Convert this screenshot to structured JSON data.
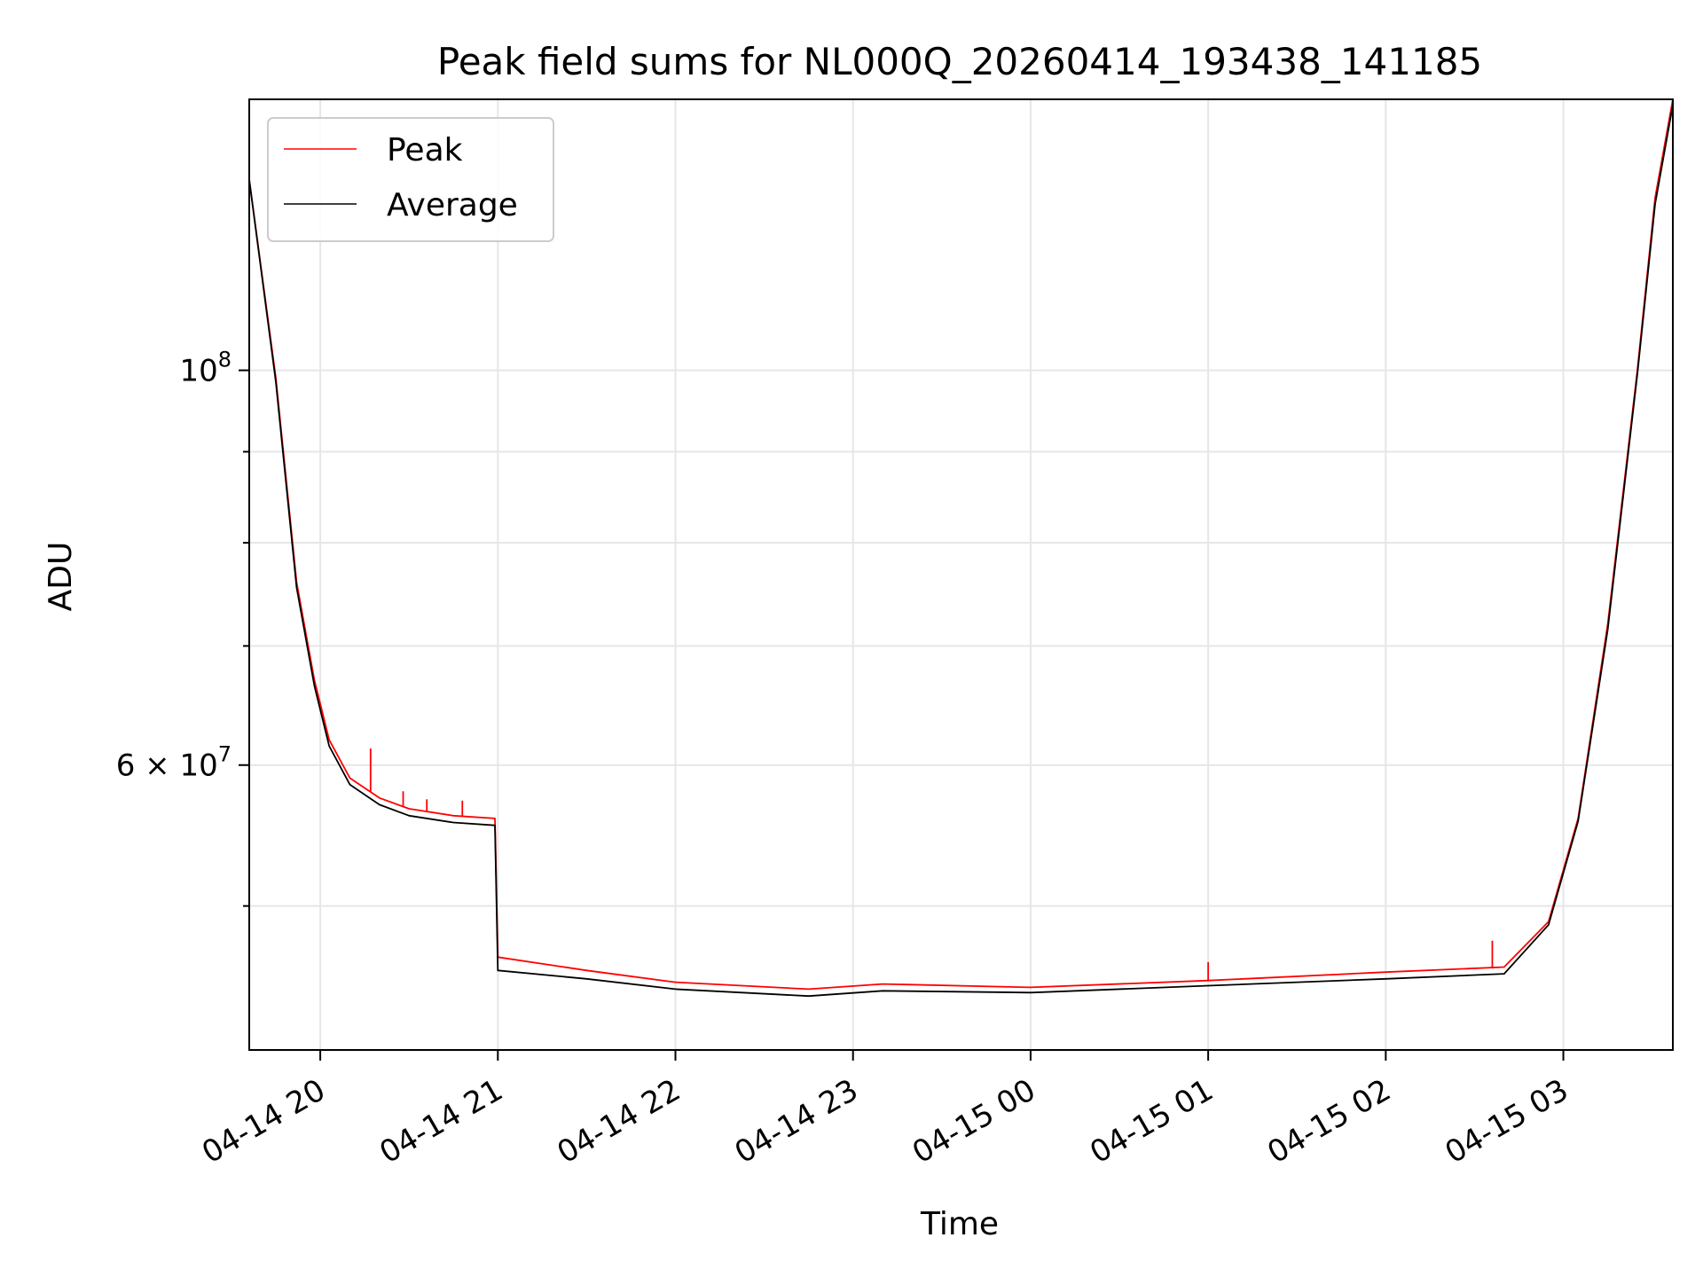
{
  "chart_data": {
    "type": "line",
    "title": "Peak field sums for NL000Q_20260414_193438_141185",
    "xlabel": "Time",
    "ylabel": "ADU",
    "yscale": "log",
    "xlim": [
      "2026-04-14 19:36",
      "2026-04-15 03:37"
    ],
    "ylim": [
      41500000,
      142000000
    ],
    "grid": true,
    "legend_position": "top-left",
    "x_ticks": [
      {
        "value": "2026-04-14 20:00",
        "label": "04-14 20"
      },
      {
        "value": "2026-04-14 21:00",
        "label": "04-14 21"
      },
      {
        "value": "2026-04-14 22:00",
        "label": "04-14 22"
      },
      {
        "value": "2026-04-14 23:00",
        "label": "04-14 23"
      },
      {
        "value": "2026-04-15 00:00",
        "label": "04-15 00"
      },
      {
        "value": "2026-04-15 01:00",
        "label": "04-15 01"
      },
      {
        "value": "2026-04-15 02:00",
        "label": "04-15 02"
      },
      {
        "value": "2026-04-15 03:00",
        "label": "04-15 03"
      }
    ],
    "y_major_ticks": [
      {
        "value": 100000000,
        "base": "10",
        "exp": "8",
        "mantissa": ""
      },
      {
        "value": 60000000,
        "base": "10",
        "exp": "7",
        "mantissa": "6"
      }
    ],
    "y_minor_ticks": [
      50000000,
      70000000,
      80000000,
      90000000
    ],
    "series": [
      {
        "name": "Peak",
        "color": "#ff0000",
        "points": [
          [
            "2026-04-14 19:36",
            128000000
          ],
          [
            "2026-04-14 19:45",
            99000000
          ],
          [
            "2026-04-14 19:52",
            76000000
          ],
          [
            "2026-04-14 19:58",
            67000000
          ],
          [
            "2026-04-14 20:03",
            62000000
          ],
          [
            "2026-04-14 20:10",
            59000000
          ],
          [
            "2026-04-14 20:20",
            57500000
          ],
          [
            "2026-04-14 20:30",
            56700000
          ],
          [
            "2026-04-14 20:45",
            56200000
          ],
          [
            "2026-04-14 20:59",
            56000000
          ],
          [
            "2026-04-14 21:00",
            46800000
          ],
          [
            "2026-04-14 21:30",
            46000000
          ],
          [
            "2026-04-14 22:00",
            45300000
          ],
          [
            "2026-04-14 22:45",
            44900000
          ],
          [
            "2026-04-14 23:10",
            45200000
          ],
          [
            "2026-04-15 00:00",
            45000000
          ],
          [
            "2026-04-15 01:00",
            45400000
          ],
          [
            "2026-04-15 02:00",
            45900000
          ],
          [
            "2026-04-15 02:40",
            46200000
          ],
          [
            "2026-04-15 02:55",
            49000000
          ],
          [
            "2026-04-15 03:05",
            56000000
          ],
          [
            "2026-04-15 03:15",
            72000000
          ],
          [
            "2026-04-15 03:25",
            100000000
          ],
          [
            "2026-04-15 03:31",
            125000000
          ],
          [
            "2026-04-15 03:37",
            142000000
          ]
        ],
        "spikes": [
          [
            "2026-04-14 20:17",
            61300000
          ],
          [
            "2026-04-14 20:28",
            58000000
          ],
          [
            "2026-04-14 20:36",
            57400000
          ],
          [
            "2026-04-14 20:48",
            57300000
          ],
          [
            "2026-04-15 01:00",
            46500000
          ],
          [
            "2026-04-15 02:36",
            47800000
          ]
        ]
      },
      {
        "name": "Average",
        "color": "#000000",
        "points": [
          [
            "2026-04-14 19:36",
            128000000
          ],
          [
            "2026-04-14 19:45",
            98500000
          ],
          [
            "2026-04-14 19:52",
            75500000
          ],
          [
            "2026-04-14 19:58",
            66500000
          ],
          [
            "2026-04-14 20:03",
            61500000
          ],
          [
            "2026-04-14 20:10",
            58500000
          ],
          [
            "2026-04-14 20:20",
            57000000
          ],
          [
            "2026-04-14 20:30",
            56200000
          ],
          [
            "2026-04-14 20:45",
            55700000
          ],
          [
            "2026-04-14 20:59",
            55500000
          ],
          [
            "2026-04-14 21:00",
            46000000
          ],
          [
            "2026-04-14 21:30",
            45500000
          ],
          [
            "2026-04-14 22:00",
            44900000
          ],
          [
            "2026-04-14 22:45",
            44500000
          ],
          [
            "2026-04-14 23:10",
            44800000
          ],
          [
            "2026-04-15 00:00",
            44700000
          ],
          [
            "2026-04-15 01:00",
            45100000
          ],
          [
            "2026-04-15 02:00",
            45500000
          ],
          [
            "2026-04-15 02:40",
            45800000
          ],
          [
            "2026-04-15 02:55",
            48800000
          ],
          [
            "2026-04-15 03:05",
            55800000
          ],
          [
            "2026-04-15 03:15",
            71500000
          ],
          [
            "2026-04-15 03:25",
            99500000
          ],
          [
            "2026-04-15 03:31",
            124000000
          ],
          [
            "2026-04-15 03:37",
            141000000
          ]
        ]
      }
    ]
  }
}
